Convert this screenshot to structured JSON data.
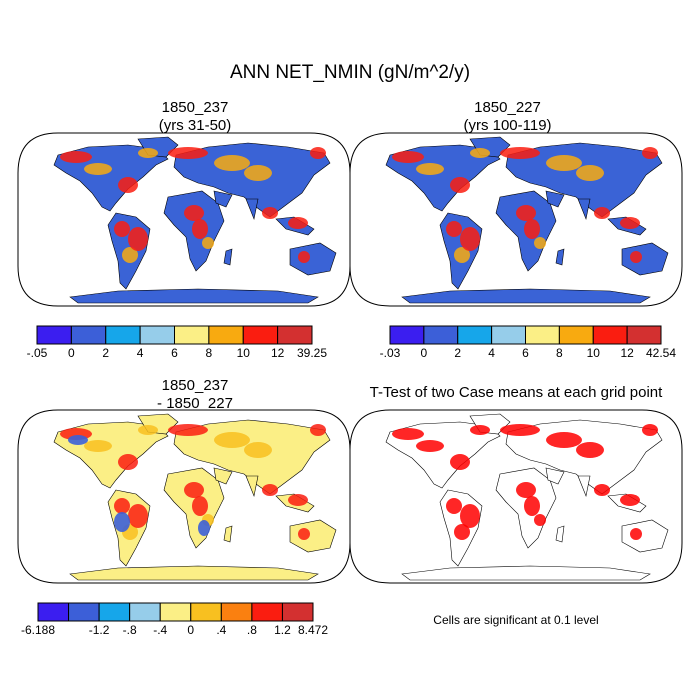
{
  "title": "ANN NET_NMIN (gN/m^2/y)",
  "panels": [
    {
      "id": "case1",
      "title_line1": "1850_237",
      "title_line2": "(yrs 31-50)",
      "colorbar": {
        "labels": [
          "-.05",
          "0",
          "2",
          "4",
          "6",
          "8",
          "10",
          "12",
          "39.25"
        ],
        "colors": [
          "#3b1ef0",
          "#3c5fd8",
          "#16a6ea",
          "#96cdea",
          "#fbef86",
          "#f8aa10",
          "#fa1d10",
          "#d33030"
        ]
      },
      "palette": {
        "ocean": "#ffffff",
        "base": "#3a63d6",
        "warm": "#f8aa10",
        "hot": "#fa1d10",
        "mid": "#96cdea",
        "antarctica": "#3a63d6"
      }
    },
    {
      "id": "case2",
      "title_line1": "1850_227",
      "title_line2": "(yrs 100-119)",
      "colorbar": {
        "labels": [
          "-.03",
          "0",
          "2",
          "4",
          "6",
          "8",
          "10",
          "12",
          "42.54"
        ],
        "colors": [
          "#3b1ef0",
          "#3c5fd8",
          "#16a6ea",
          "#96cdea",
          "#fbef86",
          "#f8aa10",
          "#fa1d10",
          "#d33030"
        ]
      },
      "palette": {
        "ocean": "#ffffff",
        "base": "#3a63d6",
        "warm": "#f8aa10",
        "hot": "#fa1d10",
        "mid": "#96cdea",
        "antarctica": "#3a63d6"
      }
    },
    {
      "id": "diff",
      "title_line1": "1850_237",
      "title_line2": "- 1850_227",
      "colorbar": {
        "labels": [
          "-6.188",
          "-1.2",
          "-.8",
          "-.4",
          "0",
          ".4",
          ".8",
          "1.2",
          "8.472"
        ],
        "colors": [
          "#3b1ef0",
          "#3c5fd8",
          "#16a6ea",
          "#96cdea",
          "#fbef86",
          "#f8c020",
          "#fa8010",
          "#fa1d10",
          "#d33030"
        ]
      },
      "palette": {
        "ocean": "#ffffff",
        "base": "#fbef86",
        "warm": "#f8c020",
        "hot": "#fa1d10",
        "mid": "#3c5fd8",
        "antarctica": "#fbef86"
      }
    },
    {
      "id": "ttest",
      "title_line1": "T-Test of two Case means at each grid point",
      "note": "Cells are significant at 0.1 level",
      "palette": {
        "ocean": "#ffffff",
        "base": "#ffffff",
        "warm": "#ff0000",
        "hot": "#ff0000",
        "mid": "#ffffff",
        "antarctica": "#ffffff"
      }
    }
  ]
}
